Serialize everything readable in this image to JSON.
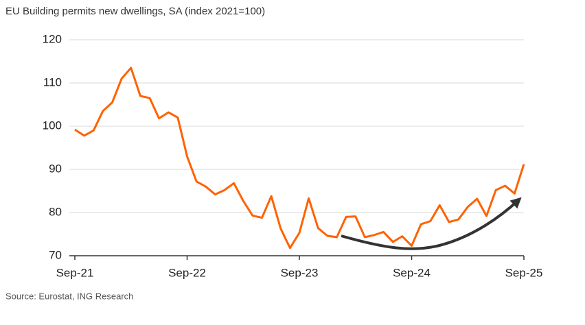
{
  "chart_data": {
    "type": "line",
    "title": "EU Building permits new dwellings, SA (index 2021=100)",
    "source": "Source: Eurostat, ING Research",
    "categories": [
      "Sep-21",
      null,
      null,
      null,
      null,
      null,
      null,
      null,
      null,
      null,
      null,
      null,
      "Sep-22",
      null,
      null,
      null,
      null,
      null,
      null,
      null,
      null,
      null,
      null,
      null,
      "Sep-23",
      null,
      null,
      null,
      null,
      null,
      null,
      null,
      null,
      null,
      null,
      null,
      "Sep-24",
      null,
      null,
      null,
      null,
      null,
      null,
      null,
      null,
      null,
      null,
      null,
      "Sep-25"
    ],
    "values": [
      99.2,
      97.8,
      99,
      103.5,
      105.5,
      111,
      113.5,
      107,
      106.5,
      101.8,
      103.2,
      102,
      93,
      87.2,
      86,
      84.2,
      85.2,
      86.8,
      82.7,
      79.3,
      78.8,
      83.8,
      76.3,
      71.8,
      75.3,
      83.3,
      76.4,
      74.6,
      74.3,
      79,
      79.1,
      74.3,
      74.8,
      75.5,
      73.2,
      74.5,
      72.3,
      77.3,
      78,
      81.7,
      77.8,
      78.4,
      81.3,
      83.2,
      79.2,
      85.2,
      86.2,
      84.4,
      91.2
    ],
    "color": "#ff6200",
    "ylim": [
      70,
      120
    ],
    "yticks": [
      70,
      80,
      90,
      100,
      110,
      120
    ],
    "grid": true
  }
}
